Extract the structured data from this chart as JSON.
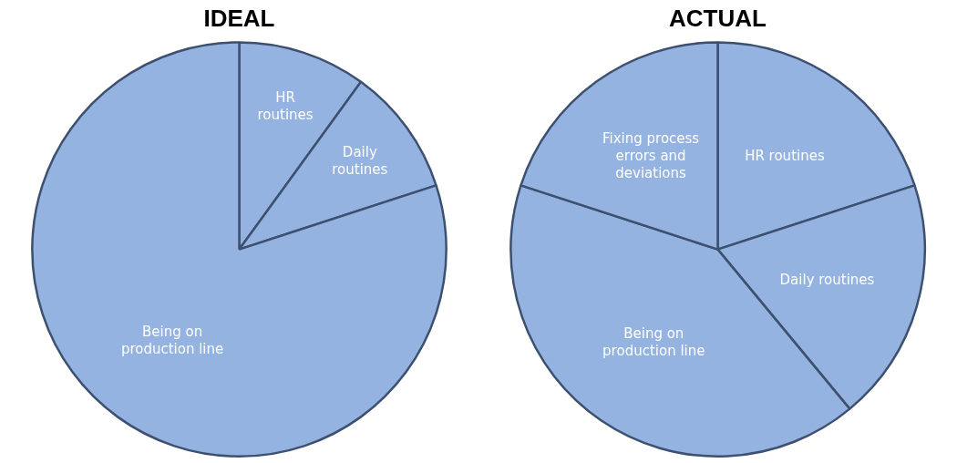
{
  "chart_data": [
    {
      "type": "pie",
      "title": "IDEAL",
      "categories": [
        "HR routines",
        "Daily routines",
        "Being on production line"
      ],
      "values": [
        10,
        10,
        80
      ],
      "colors": [
        "#95b3e0",
        "#95b3e0",
        "#95b3e0"
      ],
      "legend": false
    },
    {
      "type": "pie",
      "title": "ACTUAL",
      "categories": [
        "HR routines",
        "Daily routines",
        "Being on production line",
        "Fixing process errors and deviations"
      ],
      "values": [
        20,
        19,
        41,
        20
      ],
      "colors": [
        "#95b3e0",
        "#95b3e0",
        "#95b3e0",
        "#95b3e0"
      ],
      "legend": false
    }
  ]
}
